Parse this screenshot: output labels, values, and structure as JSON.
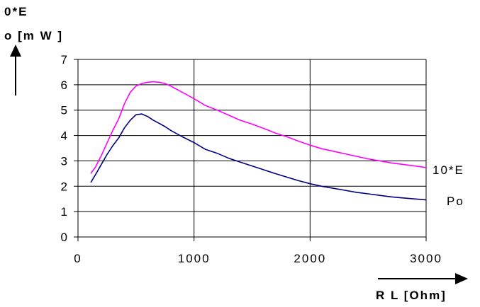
{
  "chart_data": {
    "type": "line",
    "xlabel": "R L [Ohm]",
    "ylabel_lines": [
      "0*E",
      "o [m W ]"
    ],
    "xlim": [
      0,
      3000
    ],
    "ylim": [
      0,
      7
    ],
    "x_ticks": [
      0,
      1000,
      2000,
      3000
    ],
    "y_ticks": [
      0,
      1,
      2,
      3,
      4,
      5,
      6,
      7
    ],
    "x_tick_labels": [
      "0",
      "1000",
      "2000",
      "3000"
    ],
    "y_tick_labels": [
      "0",
      "1",
      "2",
      "3",
      "4",
      "5",
      "6",
      "7"
    ],
    "grid": true,
    "series": [
      {
        "name": "10*E",
        "color": "#ff00ff",
        "points": [
          [
            110,
            2.5
          ],
          [
            150,
            2.75
          ],
          [
            200,
            3.2
          ],
          [
            250,
            3.7
          ],
          [
            300,
            4.2
          ],
          [
            350,
            4.65
          ],
          [
            400,
            5.25
          ],
          [
            450,
            5.7
          ],
          [
            500,
            5.95
          ],
          [
            550,
            6.05
          ],
          [
            600,
            6.1
          ],
          [
            650,
            6.12
          ],
          [
            700,
            6.1
          ],
          [
            750,
            6.05
          ],
          [
            800,
            5.95
          ],
          [
            900,
            5.7
          ],
          [
            1000,
            5.45
          ],
          [
            1100,
            5.18
          ],
          [
            1200,
            5.0
          ],
          [
            1300,
            4.8
          ],
          [
            1400,
            4.6
          ],
          [
            1500,
            4.45
          ],
          [
            1600,
            4.28
          ],
          [
            1700,
            4.1
          ],
          [
            1800,
            3.95
          ],
          [
            1900,
            3.78
          ],
          [
            2000,
            3.62
          ],
          [
            2100,
            3.48
          ],
          [
            2200,
            3.38
          ],
          [
            2300,
            3.28
          ],
          [
            2400,
            3.18
          ],
          [
            2500,
            3.08
          ],
          [
            2600,
            3.0
          ],
          [
            2700,
            2.92
          ],
          [
            2800,
            2.86
          ],
          [
            2900,
            2.8
          ],
          [
            3000,
            2.74
          ]
        ]
      },
      {
        "name": "Po",
        "color": "#000080",
        "points": [
          [
            110,
            2.15
          ],
          [
            150,
            2.45
          ],
          [
            200,
            2.85
          ],
          [
            250,
            3.25
          ],
          [
            300,
            3.6
          ],
          [
            350,
            3.9
          ],
          [
            400,
            4.3
          ],
          [
            450,
            4.6
          ],
          [
            500,
            4.82
          ],
          [
            550,
            4.85
          ],
          [
            600,
            4.75
          ],
          [
            650,
            4.6
          ],
          [
            700,
            4.48
          ],
          [
            750,
            4.35
          ],
          [
            800,
            4.2
          ],
          [
            900,
            3.95
          ],
          [
            1000,
            3.72
          ],
          [
            1100,
            3.45
          ],
          [
            1200,
            3.3
          ],
          [
            1300,
            3.1
          ],
          [
            1400,
            2.95
          ],
          [
            1500,
            2.8
          ],
          [
            1600,
            2.65
          ],
          [
            1700,
            2.5
          ],
          [
            1800,
            2.36
          ],
          [
            1900,
            2.22
          ],
          [
            2000,
            2.1
          ],
          [
            2100,
            2.0
          ],
          [
            2200,
            1.92
          ],
          [
            2300,
            1.84
          ],
          [
            2400,
            1.76
          ],
          [
            2500,
            1.7
          ],
          [
            2600,
            1.64
          ],
          [
            2700,
            1.58
          ],
          [
            2800,
            1.54
          ],
          [
            2900,
            1.5
          ],
          [
            3000,
            1.46
          ]
        ]
      }
    ],
    "colors": {
      "gridline": "#000000",
      "background": "#ffffff"
    }
  }
}
